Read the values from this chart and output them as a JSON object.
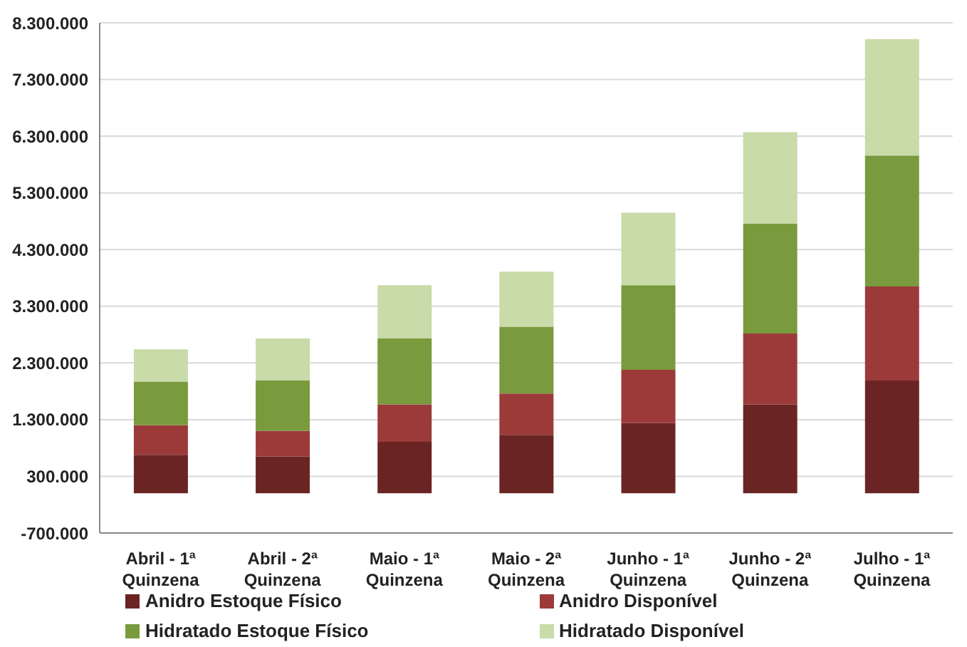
{
  "chart_data": {
    "type": "bar",
    "stacked": true,
    "categories": [
      "Abril - 1ª Quinzena",
      "Abril - 2ª Quinzena",
      "Maio - 1ª Quinzena",
      "Maio - 2ª Quinzena",
      "Junho - 1ª Quinzena",
      "Junho - 2ª Quinzena",
      "Julho - 1ª Quinzena"
    ],
    "series": [
      {
        "name": "Anidro Estoque Físico",
        "color": "#6b2424",
        "values": [
          680000,
          650000,
          910000,
          1030000,
          1240000,
          1570000,
          1990000
        ]
      },
      {
        "name": "Anidro Disponível",
        "color": "#9c3a3a",
        "values": [
          520000,
          450000,
          660000,
          730000,
          940000,
          1250000,
          1660000
        ]
      },
      {
        "name": "Hidratado Estoque Físico",
        "color": "#7a9a3e",
        "values": [
          770000,
          890000,
          1160000,
          1180000,
          1490000,
          1940000,
          2310000
        ]
      },
      {
        "name": "Hidratado Disponível",
        "color": "#c8dba8",
        "values": [
          570000,
          740000,
          940000,
          970000,
          1280000,
          1610000,
          2050000
        ]
      }
    ],
    "ylim": [
      -700000,
      8300000
    ],
    "yticks": [
      {
        "value": -700000,
        "label": "-700.000"
      },
      {
        "value": 300000,
        "label": "300.000"
      },
      {
        "value": 1300000,
        "label": "1.300.000"
      },
      {
        "value": 2300000,
        "label": "2.300.000"
      },
      {
        "value": 3300000,
        "label": "3.300.000"
      },
      {
        "value": 4300000,
        "label": "4.300.000"
      },
      {
        "value": 5300000,
        "label": "5.300.000"
      },
      {
        "value": 6300000,
        "label": "6.300.000"
      },
      {
        "value": 7300000,
        "label": "7.300.000"
      },
      {
        "value": 8300000,
        "label": "8.300.000"
      }
    ],
    "grid": "y",
    "legend": "bottom"
  }
}
